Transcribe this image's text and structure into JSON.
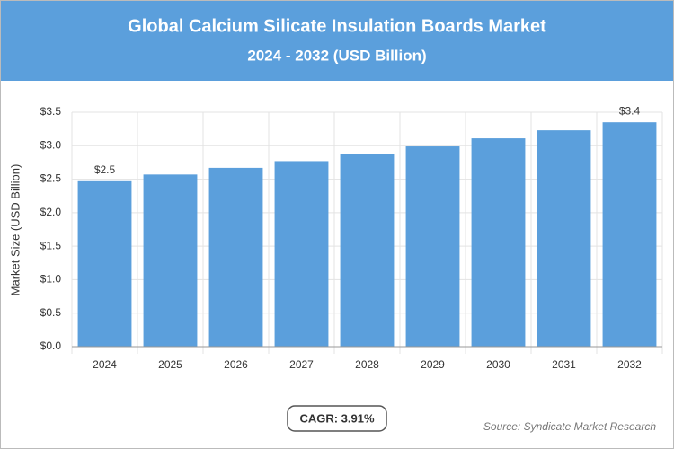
{
  "chart_data": {
    "type": "bar",
    "title": "Global Calcium Silicate Insulation Boards Market",
    "subtitle": "2024 - 2032 (USD Billion)",
    "y_label": "Market Size (USD Billion)",
    "categories": [
      "2024",
      "2025",
      "2026",
      "2027",
      "2028",
      "2029",
      "2030",
      "2031",
      "2032"
    ],
    "values": [
      2.47,
      2.57,
      2.67,
      2.77,
      2.88,
      2.99,
      3.11,
      3.23,
      3.35
    ],
    "value_labels": [
      "$2.5",
      null,
      null,
      null,
      null,
      null,
      null,
      null,
      "$3.4"
    ],
    "color": "#5b9fdc",
    "ylim": [
      0,
      3.5
    ],
    "yticks": [
      {
        "value": 0,
        "label": "$0.0"
      },
      {
        "value": 0.5,
        "label": "$0.5"
      },
      {
        "value": 1,
        "label": "$1.0"
      },
      {
        "value": 1.5,
        "label": "$1.5"
      },
      {
        "value": 2,
        "label": "$2.0"
      },
      {
        "value": 2.5,
        "label": "$2.5"
      },
      {
        "value": 3,
        "label": "$3.0"
      },
      {
        "value": 3.5,
        "label": "$3.5"
      }
    ],
    "grid": true,
    "cagr": "CAGR: 3.91%",
    "source": "Source: Syndicate Market Research"
  }
}
